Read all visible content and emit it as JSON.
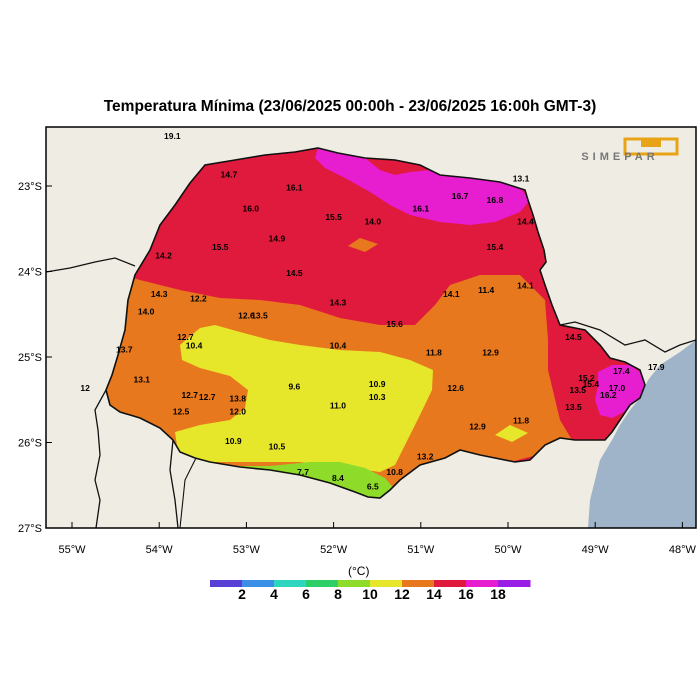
{
  "title": "Temperatura Mínima (23/06/2025 00:00h - 23/06/2025 16:00h GMT-3)",
  "logo_text": "SIMEPAR",
  "axes": {
    "lon_labels": [
      "55°W",
      "54°W",
      "53°W",
      "52°W",
      "51°W",
      "50°W",
      "49°W",
      "48°W"
    ],
    "lat_labels": [
      "23°S",
      "24°S",
      "25°S",
      "26°S",
      "27°S"
    ]
  },
  "colorbar": {
    "unit": "(°C)",
    "labels": [
      "2",
      "4",
      "6",
      "8",
      "10",
      "12",
      "14",
      "16",
      "18"
    ],
    "colors": [
      "#5a3fd6",
      "#3b8fe6",
      "#2ed6c0",
      "#2ecf66",
      "#8fdb2a",
      "#e6e62a",
      "#e8781e",
      "#e01a3c",
      "#e61ecf",
      "#9a1ee6"
    ]
  },
  "stations": [
    {
      "v": "19.1",
      "lon": -53.85,
      "lat": -22.45
    },
    {
      "v": "14.7",
      "lon": -53.2,
      "lat": -22.9
    },
    {
      "v": "16.1",
      "lon": -52.45,
      "lat": -23.05
    },
    {
      "v": "16.0",
      "lon": -52.95,
      "lat": -23.3
    },
    {
      "v": "15.5",
      "lon": -52.0,
      "lat": -23.4
    },
    {
      "v": "14.0",
      "lon": -51.55,
      "lat": -23.45
    },
    {
      "v": "16.1",
      "lon": -51.0,
      "lat": -23.3
    },
    {
      "v": "16.7",
      "lon": -50.55,
      "lat": -23.15
    },
    {
      "v": "16.8",
      "lon": -50.15,
      "lat": -23.2
    },
    {
      "v": "13.1",
      "lon": -49.85,
      "lat": -22.95
    },
    {
      "v": "14.4",
      "lon": -49.8,
      "lat": -23.45
    },
    {
      "v": "14.9",
      "lon": -52.65,
      "lat": -23.65
    },
    {
      "v": "15.5",
      "lon": -53.3,
      "lat": -23.75
    },
    {
      "v": "15.4",
      "lon": -50.15,
      "lat": -23.75
    },
    {
      "v": "14.2",
      "lon": -53.95,
      "lat": -23.85
    },
    {
      "v": "14.5",
      "lon": -52.45,
      "lat": -24.05
    },
    {
      "v": "14.3",
      "lon": -54.0,
      "lat": -24.3
    },
    {
      "v": "12.2",
      "lon": -53.55,
      "lat": -24.35
    },
    {
      "v": "14.0",
      "lon": -54.15,
      "lat": -24.5
    },
    {
      "v": "14.3",
      "lon": -51.95,
      "lat": -24.4
    },
    {
      "v": "14.1",
      "lon": -50.65,
      "lat": -24.3
    },
    {
      "v": "11.4",
      "lon": -50.25,
      "lat": -24.25
    },
    {
      "v": "14.1",
      "lon": -49.8,
      "lat": -24.2
    },
    {
      "v": "12.6",
      "lon": -53.0,
      "lat": -24.55
    },
    {
      "v": "13.5",
      "lon": -52.85,
      "lat": -24.55
    },
    {
      "v": "15.6",
      "lon": -51.3,
      "lat": -24.65
    },
    {
      "v": "12.7",
      "lon": -53.7,
      "lat": -24.8
    },
    {
      "v": "10.4",
      "lon": -53.6,
      "lat": -24.9
    },
    {
      "v": "10.4",
      "lon": -51.95,
      "lat": -24.9
    },
    {
      "v": "13.7",
      "lon": -54.4,
      "lat": -24.95
    },
    {
      "v": "11.8",
      "lon": -50.85,
      "lat": -24.98
    },
    {
      "v": "12.9",
      "lon": -50.2,
      "lat": -24.98
    },
    {
      "v": "14.5",
      "lon": -49.25,
      "lat": -24.8
    },
    {
      "v": "17.4",
      "lon": -48.7,
      "lat": -25.2
    },
    {
      "v": "17.9",
      "lon": -48.3,
      "lat": -25.15
    },
    {
      "v": "13.1",
      "lon": -54.2,
      "lat": -25.3
    },
    {
      "v": "15.2",
      "lon": -49.1,
      "lat": -25.28
    },
    {
      "v": "15.4",
      "lon": -49.05,
      "lat": -25.35
    },
    {
      "v": "13.5",
      "lon": -49.2,
      "lat": -25.42
    },
    {
      "v": "17.0",
      "lon": -48.75,
      "lat": -25.4
    },
    {
      "v": "16.2",
      "lon": -48.85,
      "lat": -25.48
    },
    {
      "v": "9.6",
      "lon": -52.45,
      "lat": -25.38
    },
    {
      "v": "10.9",
      "lon": -51.5,
      "lat": -25.35
    },
    {
      "v": "10.3",
      "lon": -51.5,
      "lat": -25.5
    },
    {
      "v": "12.6",
      "lon": -50.6,
      "lat": -25.4
    },
    {
      "v": "12",
      "lon": -54.85,
      "lat": -25.4
    },
    {
      "v": "12.7",
      "lon": -53.65,
      "lat": -25.48
    },
    {
      "v": "12.7",
      "lon": -53.45,
      "lat": -25.5
    },
    {
      "v": "13.8",
      "lon": -53.1,
      "lat": -25.52
    },
    {
      "v": "11.0",
      "lon": -51.95,
      "lat": -25.6
    },
    {
      "v": "12.5",
      "lon": -53.75,
      "lat": -25.67
    },
    {
      "v": "12.0",
      "lon": -53.1,
      "lat": -25.67
    },
    {
      "v": "13.5",
      "lon": -49.25,
      "lat": -25.62
    },
    {
      "v": "11.8",
      "lon": -49.85,
      "lat": -25.78
    },
    {
      "v": "12.9",
      "lon": -50.35,
      "lat": -25.85
    },
    {
      "v": "10.9",
      "lon": -53.15,
      "lat": -26.02
    },
    {
      "v": "10.5",
      "lon": -52.65,
      "lat": -26.08
    },
    {
      "v": "13.2",
      "lon": -50.95,
      "lat": -26.2
    },
    {
      "v": "10.8",
      "lon": -51.3,
      "lat": -26.38
    },
    {
      "v": "7.7",
      "lon": -52.35,
      "lat": -26.38
    },
    {
      "v": "8.4",
      "lon": -51.95,
      "lat": -26.45
    },
    {
      "v": "6.5",
      "lon": -51.55,
      "lat": -26.55
    }
  ]
}
